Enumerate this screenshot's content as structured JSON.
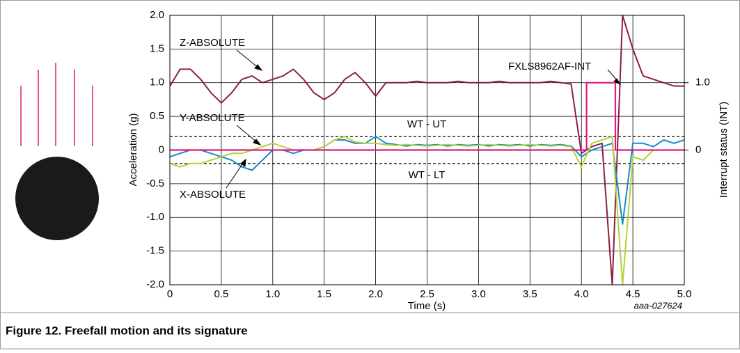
{
  "chart_data": {
    "type": "line",
    "caption": "Figure 12.  Freefall motion and its signature",
    "xlabel": "Time (s)",
    "ylabel": "Acceleration (g)",
    "y2label": "Interrupt status (INT)",
    "figure_id": "aaa-027624",
    "xlim": [
      0,
      5
    ],
    "xticks": [
      0,
      0.5,
      {
        "value": 1,
        "label": "1.0"
      },
      1.5,
      {
        "value": 2,
        "label": "2.0"
      },
      2.5,
      {
        "value": 3,
        "label": "3.0"
      },
      3.5,
      {
        "value": 4,
        "label": "4.0"
      },
      4.5,
      {
        "value": 5,
        "label": "5.0"
      }
    ],
    "ylim": [
      -2,
      2
    ],
    "yticks": [
      {
        "value": -2,
        "label": "-2.0"
      },
      -1.5,
      {
        "value": -1,
        "label": "-1.0"
      },
      -0.5,
      0,
      0.5,
      {
        "value": 1,
        "label": "1.0"
      },
      1.5,
      {
        "value": 2,
        "label": "2.0"
      }
    ],
    "y2lim": [
      -2,
      2
    ],
    "y2ticks": [
      0,
      {
        "value": 1,
        "label": "1.0"
      }
    ],
    "grid": true,
    "reference_lines": [
      {
        "label": "WT - UT",
        "value": 0.2
      },
      {
        "label": "WT - LT",
        "value": -0.2
      }
    ],
    "x": [
      0,
      0.1,
      0.2,
      0.3,
      0.4,
      0.5,
      0.6,
      0.7,
      0.8,
      0.9,
      1.0,
      1.1,
      1.2,
      1.3,
      1.4,
      1.5,
      1.6,
      1.7,
      1.8,
      1.9,
      2.0,
      2.1,
      2.2,
      2.3,
      2.4,
      2.5,
      2.6,
      2.7,
      2.8,
      2.9,
      3.0,
      3.1,
      3.2,
      3.3,
      3.4,
      3.5,
      3.6,
      3.7,
      3.8,
      3.9,
      4.0,
      4.1,
      4.2,
      4.3,
      4.4,
      4.5,
      4.6,
      4.7,
      4.8,
      4.9,
      5.0
    ],
    "series": [
      {
        "name": "Z-ABSOLUTE",
        "color": "#8c1d45",
        "values": [
          0.95,
          1.2,
          1.2,
          1.05,
          0.85,
          0.7,
          0.85,
          1.05,
          1.1,
          1.0,
          1.05,
          1.1,
          1.2,
          1.05,
          0.85,
          0.75,
          0.85,
          1.05,
          1.15,
          1.0,
          0.8,
          1.0,
          1.0,
          1.0,
          1.02,
          1.0,
          1.0,
          1.0,
          1.02,
          1.0,
          1.0,
          1.0,
          1.02,
          1.0,
          1.0,
          1.0,
          1.0,
          1.02,
          1.0,
          0.98,
          -0.05,
          0.05,
          0.1,
          -2.0,
          2.0,
          1.5,
          1.1,
          1.05,
          1.0,
          0.95,
          0.95
        ]
      },
      {
        "name": "X-ABSOLUTE",
        "color": "#1b8ac9",
        "values": [
          -0.1,
          -0.05,
          0.0,
          0.0,
          -0.05,
          -0.1,
          -0.15,
          -0.25,
          -0.3,
          -0.15,
          0.0,
          0.0,
          -0.05,
          0.0,
          0.0,
          0.05,
          0.15,
          0.15,
          0.1,
          0.1,
          0.2,
          0.1,
          0.08,
          0.06,
          0.08,
          0.07,
          0.08,
          0.06,
          0.08,
          0.07,
          0.08,
          0.06,
          0.08,
          0.07,
          0.08,
          0.06,
          0.08,
          0.07,
          0.08,
          0.06,
          -0.1,
          0.0,
          0.05,
          0.1,
          -1.1,
          0.1,
          0.1,
          0.05,
          0.15,
          0.1,
          0.15
        ]
      },
      {
        "name": "Y-ABSOLUTE",
        "color": "#b3d335",
        "values": [
          -0.2,
          -0.25,
          -0.2,
          -0.2,
          -0.15,
          -0.1,
          -0.05,
          -0.05,
          0.0,
          0.05,
          0.1,
          0.05,
          0.0,
          0.0,
          0.0,
          0.05,
          0.15,
          0.2,
          0.12,
          0.1,
          0.1,
          0.08,
          0.07,
          0.08,
          0.07,
          0.06,
          0.07,
          0.08,
          0.07,
          0.06,
          0.07,
          0.08,
          0.07,
          0.06,
          0.07,
          0.08,
          0.07,
          0.06,
          0.07,
          0.05,
          -0.25,
          0.1,
          0.15,
          0.2,
          -2.0,
          -0.1,
          -0.15,
          0.0,
          0.0,
          0.0,
          0.0
        ]
      },
      {
        "name": "FXLS8962AF-INT",
        "color": "#e2197d",
        "axis": "y2",
        "x": [
          0,
          4.05,
          4.05,
          4.33,
          4.33,
          5.0
        ],
        "values": [
          0,
          0,
          1,
          1,
          0,
          0
        ]
      }
    ]
  }
}
